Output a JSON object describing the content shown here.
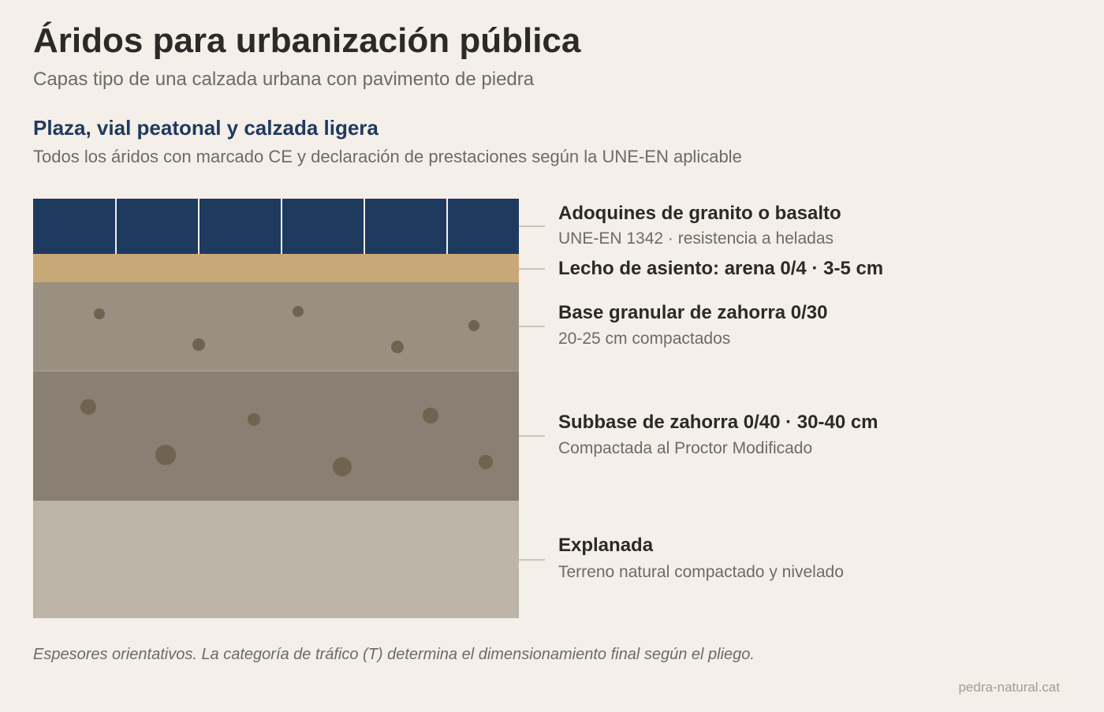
{
  "header": {
    "title": "Áridos para urbanización pública",
    "subtitle": "Capas tipo de una calzada urbana con pavimento de piedra"
  },
  "section": {
    "title": "Plaza, vial peatonal y calzada ligera",
    "subtitle": "Todos los áridos con marcado CE y declaración de prestaciones según la UNE-EN aplicable"
  },
  "layers": [
    {
      "id": "pavers",
      "name": "Adoquines de granito o basalto",
      "detail": "UNE-EN 1342 · resistencia a heladas",
      "color": "#1e3a5f"
    },
    {
      "id": "sand",
      "name": "Lecho de asiento: arena 0/4 · 3-5 cm",
      "detail": "",
      "color": "#c9a877"
    },
    {
      "id": "base",
      "name": "Base granular de zahorra 0/30",
      "detail": "20-25 cm compactados",
      "color": "#9a9082"
    },
    {
      "id": "subbase",
      "name": "Subbase de zahorra 0/40 · 30-40 cm",
      "detail": "Compactada al Proctor Modificado",
      "color": "#897f72"
    },
    {
      "id": "subgrade",
      "name": "Explanada",
      "detail": "Terreno natural compactado y nivelado",
      "color": "#bdb5a8"
    }
  ],
  "footnote": "Espesores orientativos. La categoría de tráfico (T) determina el dimensionamiento final según el pliego.",
  "credit": "pedra-natural.cat",
  "colors": {
    "background": "#f4efe8",
    "accent": "#1f3a5f",
    "stone": "#70634f"
  }
}
